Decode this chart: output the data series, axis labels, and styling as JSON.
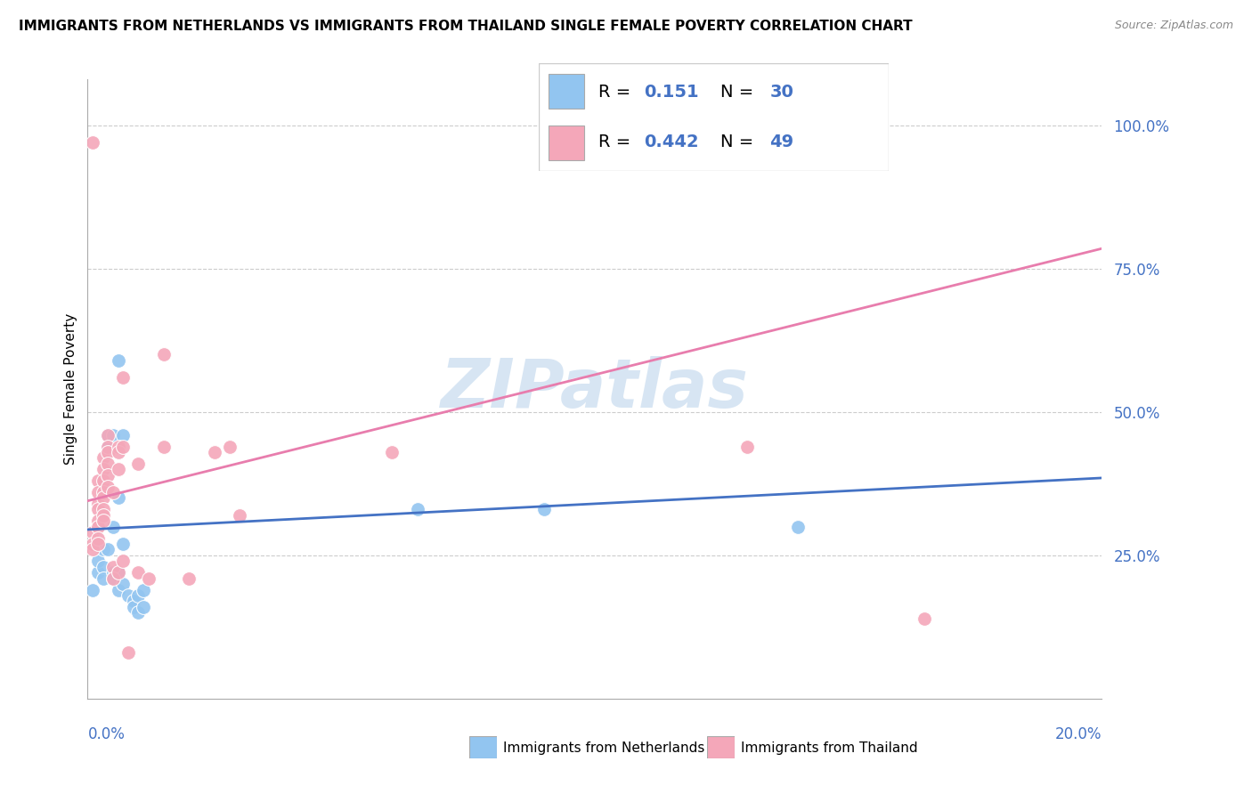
{
  "title": "IMMIGRANTS FROM NETHERLANDS VS IMMIGRANTS FROM THAILAND SINGLE FEMALE POVERTY CORRELATION CHART",
  "source": "Source: ZipAtlas.com",
  "ylabel": "Single Female Poverty",
  "r_netherlands": 0.151,
  "n_netherlands": 30,
  "r_thailand": 0.442,
  "n_thailand": 49,
  "xlim": [
    0.0,
    0.2
  ],
  "ylim": [
    0.0,
    1.08
  ],
  "yticks": [
    0.25,
    0.5,
    0.75,
    1.0
  ],
  "ytick_labels": [
    "25.0%",
    "50.0%",
    "75.0%",
    "100.0%"
  ],
  "color_netherlands": "#92C5F0",
  "color_thailand": "#F4A7B9",
  "trendline_netherlands": "#4472C4",
  "trendline_thailand": "#E87DAD",
  "watermark": "ZIPatlas",
  "netherlands_points": [
    [
      0.001,
      0.19
    ],
    [
      0.002,
      0.22
    ],
    [
      0.002,
      0.24
    ],
    [
      0.003,
      0.26
    ],
    [
      0.003,
      0.23
    ],
    [
      0.003,
      0.21
    ],
    [
      0.004,
      0.46
    ],
    [
      0.004,
      0.44
    ],
    [
      0.004,
      0.26
    ],
    [
      0.005,
      0.46
    ],
    [
      0.005,
      0.3
    ],
    [
      0.005,
      0.22
    ],
    [
      0.005,
      0.21
    ],
    [
      0.006,
      0.59
    ],
    [
      0.006,
      0.35
    ],
    [
      0.006,
      0.22
    ],
    [
      0.006,
      0.19
    ],
    [
      0.007,
      0.46
    ],
    [
      0.007,
      0.27
    ],
    [
      0.007,
      0.2
    ],
    [
      0.008,
      0.18
    ],
    [
      0.009,
      0.17
    ],
    [
      0.009,
      0.16
    ],
    [
      0.01,
      0.18
    ],
    [
      0.01,
      0.15
    ],
    [
      0.011,
      0.19
    ],
    [
      0.011,
      0.16
    ],
    [
      0.065,
      0.33
    ],
    [
      0.09,
      0.33
    ],
    [
      0.14,
      0.3
    ]
  ],
  "thailand_points": [
    [
      0.001,
      0.97
    ],
    [
      0.001,
      0.29
    ],
    [
      0.001,
      0.27
    ],
    [
      0.001,
      0.26
    ],
    [
      0.002,
      0.38
    ],
    [
      0.002,
      0.36
    ],
    [
      0.002,
      0.34
    ],
    [
      0.002,
      0.33
    ],
    [
      0.002,
      0.31
    ],
    [
      0.002,
      0.3
    ],
    [
      0.002,
      0.28
    ],
    [
      0.002,
      0.27
    ],
    [
      0.003,
      0.42
    ],
    [
      0.003,
      0.4
    ],
    [
      0.003,
      0.38
    ],
    [
      0.003,
      0.36
    ],
    [
      0.003,
      0.35
    ],
    [
      0.003,
      0.33
    ],
    [
      0.003,
      0.32
    ],
    [
      0.003,
      0.31
    ],
    [
      0.004,
      0.46
    ],
    [
      0.004,
      0.44
    ],
    [
      0.004,
      0.43
    ],
    [
      0.004,
      0.41
    ],
    [
      0.004,
      0.39
    ],
    [
      0.004,
      0.37
    ],
    [
      0.005,
      0.36
    ],
    [
      0.005,
      0.23
    ],
    [
      0.005,
      0.21
    ],
    [
      0.006,
      0.44
    ],
    [
      0.006,
      0.43
    ],
    [
      0.006,
      0.4
    ],
    [
      0.006,
      0.22
    ],
    [
      0.007,
      0.56
    ],
    [
      0.007,
      0.44
    ],
    [
      0.007,
      0.24
    ],
    [
      0.008,
      0.08
    ],
    [
      0.01,
      0.41
    ],
    [
      0.01,
      0.22
    ],
    [
      0.012,
      0.21
    ],
    [
      0.015,
      0.6
    ],
    [
      0.015,
      0.44
    ],
    [
      0.02,
      0.21
    ],
    [
      0.025,
      0.43
    ],
    [
      0.028,
      0.44
    ],
    [
      0.03,
      0.32
    ],
    [
      0.06,
      0.43
    ],
    [
      0.13,
      0.44
    ],
    [
      0.165,
      0.14
    ]
  ],
  "nl_trendline_x": [
    0.0,
    0.2
  ],
  "nl_trendline_y": [
    0.295,
    0.385
  ],
  "th_trendline_x": [
    0.0,
    0.2
  ],
  "th_trendline_y": [
    0.345,
    0.785
  ]
}
